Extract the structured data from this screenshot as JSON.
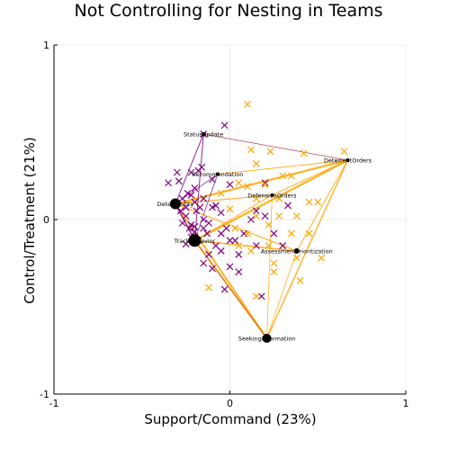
{
  "chart_data": {
    "type": "scatter",
    "title": "Not Controlling for Nesting in Teams",
    "xlabel": "Support/Command (23%)",
    "ylabel": "Control/Treatment (21%)",
    "xlim": [
      -1,
      1
    ],
    "ylim": [
      -1,
      1
    ],
    "xticks": [
      {
        "v": -1,
        "label": "-1"
      },
      {
        "v": 0,
        "label": "0"
      },
      {
        "v": 1,
        "label": "1"
      }
    ],
    "yticks": [
      {
        "v": -1,
        "label": "-1"
      },
      {
        "v": 0,
        "label": "0"
      },
      {
        "v": 1,
        "label": "1"
      }
    ],
    "grid": true,
    "legend": "none",
    "colors": {
      "purple": "#800080",
      "orange": "#ffa500",
      "node": "#000000"
    },
    "nodes": [
      {
        "name": "StatusUpdate",
        "x": -0.15,
        "y": 0.49,
        "size": 2
      },
      {
        "name": "DeterrentOrders",
        "x": 0.67,
        "y": 0.34,
        "size": 2
      },
      {
        "name": "Recommendation",
        "x": -0.07,
        "y": 0.26,
        "size": 2
      },
      {
        "name": "DefensiveOrders",
        "x": 0.24,
        "y": 0.14,
        "size": 2
      },
      {
        "name": "DetectEntity",
        "x": -0.31,
        "y": 0.09,
        "size": 6
      },
      {
        "name": "TrackBehavior",
        "x": -0.2,
        "y": -0.12,
        "size": 7
      },
      {
        "name": "AssessmentPrioritization",
        "x": 0.38,
        "y": -0.18,
        "size": 3
      },
      {
        "name": "SeekingInformation",
        "x": 0.21,
        "y": -0.68,
        "size": 5
      }
    ],
    "series": [
      {
        "color": "purple",
        "points": [
          [
            -0.15,
            0.49
          ],
          [
            -0.03,
            0.54
          ],
          [
            -0.3,
            0.27
          ],
          [
            -0.29,
            0.22
          ],
          [
            -0.35,
            0.21
          ],
          [
            -0.22,
            0.27
          ],
          [
            -0.18,
            0.28
          ],
          [
            -0.1,
            0.23
          ],
          [
            -0.2,
            0.18
          ],
          [
            -0.24,
            0.15
          ],
          [
            -0.27,
            0.12
          ],
          [
            -0.31,
            0.09
          ],
          [
            -0.28,
            0.05
          ],
          [
            -0.25,
            0.02
          ],
          [
            -0.27,
            -0.02
          ],
          [
            -0.23,
            -0.05
          ],
          [
            -0.2,
            -0.07
          ],
          [
            -0.22,
            -0.1
          ],
          [
            -0.18,
            -0.12
          ],
          [
            -0.25,
            -0.14
          ],
          [
            -0.15,
            -0.05
          ],
          [
            -0.12,
            -0.02
          ],
          [
            -0.1,
            0.07
          ],
          [
            -0.08,
            0.08
          ],
          [
            -0.05,
            0.04
          ],
          [
            -0.02,
            -0.05
          ],
          [
            0.0,
            -0.12
          ],
          [
            -0.08,
            -0.15
          ],
          [
            -0.05,
            -0.18
          ],
          [
            -0.12,
            -0.2
          ],
          [
            -0.15,
            -0.25
          ],
          [
            -0.1,
            -0.28
          ],
          [
            0.0,
            -0.27
          ],
          [
            0.05,
            -0.3
          ],
          [
            -0.15,
            0.0
          ],
          [
            -0.05,
            -0.08
          ],
          [
            0.12,
            0.0
          ],
          [
            0.15,
            0.05
          ],
          [
            0.2,
            0.02
          ],
          [
            0.25,
            -0.08
          ],
          [
            0.3,
            -0.15
          ],
          [
            0.33,
            0.08
          ],
          [
            0.15,
            -0.15
          ],
          [
            0.08,
            -0.08
          ],
          [
            -0.15,
            0.12
          ],
          [
            -0.2,
            0.1
          ],
          [
            -0.19,
            0.05
          ],
          [
            -0.22,
            -0.03
          ],
          [
            -0.13,
            -0.08
          ],
          [
            -0.03,
            -0.4
          ],
          [
            0.18,
            -0.44
          ],
          [
            -0.22,
            0.14
          ],
          [
            -0.25,
            0.07
          ],
          [
            -0.17,
            0.07
          ],
          [
            0.0,
            0.2
          ],
          [
            0.2,
            0.21
          ],
          [
            0.03,
            -0.12
          ],
          [
            0.05,
            -0.2
          ],
          [
            -0.2,
            -0.04
          ],
          [
            -0.16,
            0.3
          ]
        ]
      },
      {
        "color": "orange",
        "points": [
          [
            0.1,
            0.66
          ],
          [
            0.65,
            0.39
          ],
          [
            0.42,
            0.38
          ],
          [
            0.23,
            0.39
          ],
          [
            0.12,
            0.4
          ],
          [
            0.15,
            0.32
          ],
          [
            0.3,
            0.25
          ],
          [
            0.35,
            0.25
          ],
          [
            0.2,
            0.2
          ],
          [
            0.1,
            0.19
          ],
          [
            0.05,
            0.21
          ],
          [
            0.28,
            0.12
          ],
          [
            0.15,
            0.12
          ],
          [
            0.45,
            0.1
          ],
          [
            0.5,
            0.1
          ],
          [
            0.38,
            0.02
          ],
          [
            0.28,
            0.02
          ],
          [
            0.15,
            0.02
          ],
          [
            0.22,
            -0.03
          ],
          [
            0.35,
            -0.08
          ],
          [
            0.45,
            -0.08
          ],
          [
            0.1,
            -0.08
          ],
          [
            0.03,
            -0.05
          ],
          [
            0.05,
            -0.15
          ],
          [
            0.12,
            -0.18
          ],
          [
            0.22,
            -0.15
          ],
          [
            0.25,
            -0.25
          ],
          [
            0.25,
            -0.3
          ],
          [
            0.38,
            -0.22
          ],
          [
            0.52,
            -0.22
          ],
          [
            0.4,
            -0.35
          ],
          [
            -0.12,
            -0.39
          ],
          [
            0.15,
            -0.44
          ],
          [
            -0.05,
            0.15
          ],
          [
            0.0,
            0.06
          ]
        ]
      }
    ],
    "edges": [
      {
        "from": "DeterrentOrders",
        "to": "StatusUpdate",
        "color": "orange",
        "width": 0.8
      },
      {
        "from": "DeterrentOrders",
        "to": "Recommendation",
        "color": "orange",
        "width": 1
      },
      {
        "from": "DeterrentOrders",
        "to": "DefensiveOrders",
        "color": "orange",
        "width": 1
      },
      {
        "from": "DeterrentOrders",
        "to": "DetectEntity",
        "color": "orange",
        "width": 2.2
      },
      {
        "from": "DeterrentOrders",
        "to": "TrackBehavior",
        "color": "orange",
        "width": 2.2
      },
      {
        "from": "DeterrentOrders",
        "to": "AssessmentPrioritization",
        "color": "orange",
        "width": 1
      },
      {
        "from": "DeterrentOrders",
        "to": "SeekingInformation",
        "color": "orange",
        "width": 1.4
      },
      {
        "from": "DefensiveOrders",
        "to": "DetectEntity",
        "color": "orange",
        "width": 1.2
      },
      {
        "from": "DefensiveOrders",
        "to": "TrackBehavior",
        "color": "orange",
        "width": 1
      },
      {
        "from": "AssessmentPrioritization",
        "to": "TrackBehavior",
        "color": "orange",
        "width": 1.6
      },
      {
        "from": "AssessmentPrioritization",
        "to": "DetectEntity",
        "color": "orange",
        "width": 1.2
      },
      {
        "from": "SeekingInformation",
        "to": "DetectEntity",
        "color": "orange",
        "width": 2
      },
      {
        "from": "SeekingInformation",
        "to": "TrackBehavior",
        "color": "orange",
        "width": 2
      },
      {
        "from": "SeekingInformation",
        "to": "DefensiveOrders",
        "color": "orange",
        "width": 0.8
      },
      {
        "from": "SeekingInformation",
        "to": "AssessmentPrioritization",
        "color": "orange",
        "width": 0.8
      },
      {
        "from": "StatusUpdate",
        "to": "DetectEntity",
        "color": "purple",
        "width": 1
      },
      {
        "from": "StatusUpdate",
        "to": "TrackBehavior",
        "color": "purple",
        "width": 1
      },
      {
        "from": "Recommendation",
        "to": "DetectEntity",
        "color": "purple",
        "width": 0.8
      },
      {
        "from": "Recommendation",
        "to": "TrackBehavior",
        "color": "purple",
        "width": 0.8
      },
      {
        "from": "DetectEntity",
        "to": "TrackBehavior",
        "color": "purple",
        "width": 1.5
      },
      {
        "from": "SeekingInformation",
        "to": "TrackBehavior",
        "color": "purple",
        "width": 0.5
      },
      {
        "from": "StatusUpdate",
        "to": "DeterrentOrders",
        "color": "purple",
        "width": 0.5
      }
    ]
  }
}
